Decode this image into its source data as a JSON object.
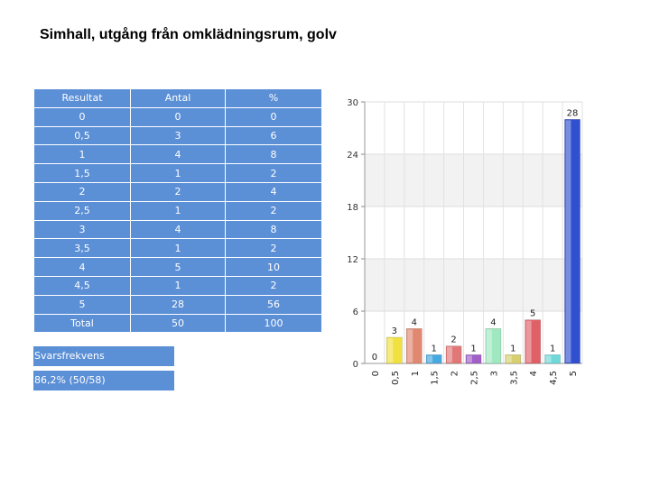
{
  "title": "Simhall, utgång från omklädningsrum, golv",
  "table": {
    "headers": [
      "Resultat",
      "Antal",
      "%"
    ],
    "rows": [
      [
        "0",
        "0",
        "0"
      ],
      [
        "0,5",
        "3",
        "6"
      ],
      [
        "1",
        "4",
        "8"
      ],
      [
        "1,5",
        "1",
        "2"
      ],
      [
        "2",
        "2",
        "4"
      ],
      [
        "2,5",
        "1",
        "2"
      ],
      [
        "3",
        "4",
        "8"
      ],
      [
        "3,5",
        "1",
        "2"
      ],
      [
        "4",
        "5",
        "10"
      ],
      [
        "4,5",
        "1",
        "2"
      ],
      [
        "5",
        "28",
        "56"
      ]
    ],
    "total": [
      "Total",
      "50",
      "100"
    ]
  },
  "response": {
    "label": "Svarsfrekvens",
    "value": "86,2% (50/58)"
  },
  "chart_data": {
    "type": "bar",
    "categories": [
      "0",
      "0,5",
      "1",
      "1,5",
      "2",
      "2,5",
      "3",
      "3,5",
      "4",
      "4,5",
      "5"
    ],
    "values": [
      0,
      3,
      4,
      1,
      2,
      1,
      4,
      1,
      5,
      1,
      28
    ],
    "colors": [
      "#c0c0c0",
      "#f0e040",
      "#e08870",
      "#48a8e0",
      "#e07878",
      "#a060c8",
      "#a0e8c0",
      "#d8d070",
      "#e06068",
      "#70d8d8",
      "#3050d0"
    ],
    "ylim": [
      0,
      30
    ],
    "yticks": [
      "0",
      "6",
      "12",
      "18",
      "24",
      "30"
    ],
    "grid": true,
    "legend": "none"
  }
}
